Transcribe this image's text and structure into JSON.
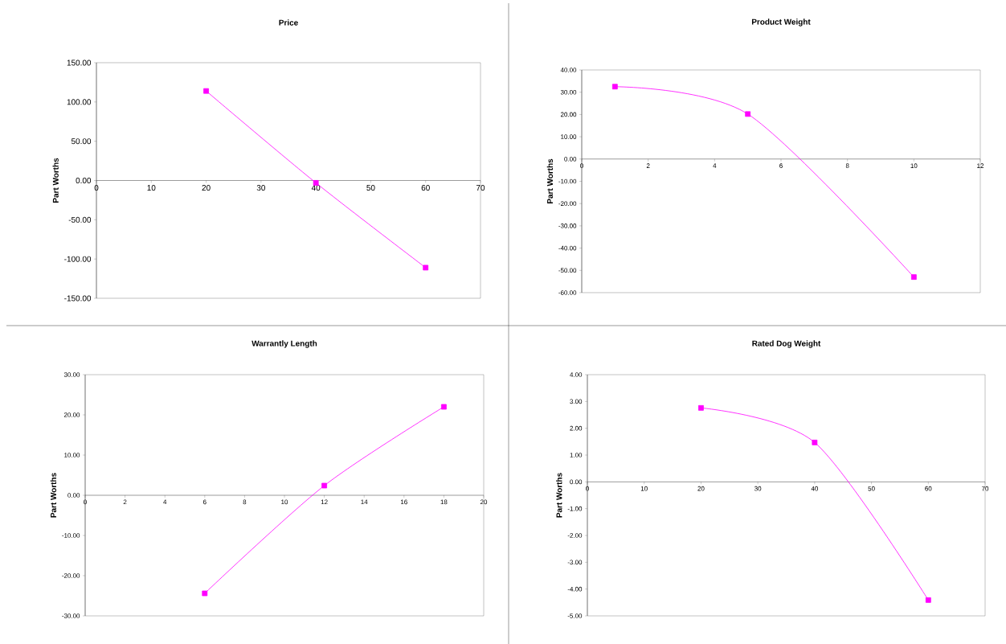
{
  "chart_data": [
    {
      "type": "line",
      "title": "Price",
      "ylabel": "Part Worths",
      "x": [
        20,
        40,
        60
      ],
      "series": [
        {
          "color": "#ff00ff",
          "values": [
            114,
            -3,
            -111
          ]
        }
      ],
      "xlim": [
        0,
        70
      ],
      "ylim": [
        -150,
        150
      ],
      "xticks": [
        0,
        10,
        20,
        30,
        40,
        50,
        60,
        70
      ],
      "yticks": [
        {
          "value": -150,
          "label": "-150.00"
        },
        {
          "value": -100,
          "label": "-100.00"
        },
        {
          "value": -50,
          "label": "-50.00"
        },
        {
          "value": 0,
          "label": "0.00"
        },
        {
          "value": 50,
          "label": "50.00"
        },
        {
          "value": 100,
          "label": "100.00"
        },
        {
          "value": 150,
          "label": "150.00"
        }
      ],
      "marker": "square",
      "line_style": "solid"
    },
    {
      "type": "line",
      "title": "Product Weight",
      "ylabel": "Part Worths",
      "x": [
        1,
        5,
        10
      ],
      "series": [
        {
          "color": "#ff00ff",
          "values": [
            32.5,
            20.2,
            -53
          ]
        }
      ],
      "xlim": [
        0,
        12
      ],
      "ylim": [
        -60,
        40
      ],
      "xticks": [
        0,
        2,
        4,
        6,
        8,
        10,
        12
      ],
      "yticks": [
        {
          "value": -60,
          "label": "-60.00"
        },
        {
          "value": -50,
          "label": "-50.00"
        },
        {
          "value": -40,
          "label": "-40.00"
        },
        {
          "value": -30,
          "label": "-30.00"
        },
        {
          "value": -20,
          "label": "-20.00"
        },
        {
          "value": -10,
          "label": "-10.00"
        },
        {
          "value": 0,
          "label": "0.00"
        },
        {
          "value": 10,
          "label": "10.00"
        },
        {
          "value": 20,
          "label": "20.00"
        },
        {
          "value": 30,
          "label": "30.00"
        },
        {
          "value": 40,
          "label": "40.00"
        }
      ],
      "marker": "square",
      "line_style": "solid"
    },
    {
      "type": "line",
      "title": "Warrantly Length",
      "ylabel": "Part Worths",
      "x": [
        6,
        12,
        18
      ],
      "series": [
        {
          "color": "#ff00ff",
          "values": [
            -24.4,
            2.4,
            22
          ]
        }
      ],
      "xlim": [
        0,
        20
      ],
      "ylim": [
        -30,
        30
      ],
      "xticks": [
        0,
        2,
        4,
        6,
        8,
        10,
        12,
        14,
        16,
        18,
        20
      ],
      "yticks": [
        {
          "value": -30,
          "label": "-30.00"
        },
        {
          "value": -20,
          "label": "-20.00"
        },
        {
          "value": -10,
          "label": "-10.00"
        },
        {
          "value": 0,
          "label": "0.00"
        },
        {
          "value": 10,
          "label": "10.00"
        },
        {
          "value": 20,
          "label": "20.00"
        },
        {
          "value": 30,
          "label": "30.00"
        }
      ],
      "marker": "square",
      "line_style": "solid"
    },
    {
      "type": "line",
      "title": "Rated Dog Weight",
      "ylabel": "Part Worths",
      "x": [
        20,
        40,
        60
      ],
      "series": [
        {
          "color": "#ff00ff",
          "values": [
            2.76,
            1.47,
            -4.41
          ]
        }
      ],
      "xlim": [
        0,
        70
      ],
      "ylim": [
        -5,
        4
      ],
      "xticks": [
        0,
        10,
        20,
        30,
        40,
        50,
        60,
        70
      ],
      "yticks": [
        {
          "value": -5,
          "label": "-5.00"
        },
        {
          "value": -4,
          "label": "-4.00"
        },
        {
          "value": -3,
          "label": "-3.00"
        },
        {
          "value": -2,
          "label": "-2.00"
        },
        {
          "value": -1,
          "label": "-1.00"
        },
        {
          "value": 0,
          "label": "0.00"
        },
        {
          "value": 1,
          "label": "1.00"
        },
        {
          "value": 2,
          "label": "2.00"
        },
        {
          "value": 3,
          "label": "3.00"
        },
        {
          "value": 4,
          "label": "4.00"
        }
      ],
      "marker": "square",
      "line_style": "solid"
    }
  ]
}
